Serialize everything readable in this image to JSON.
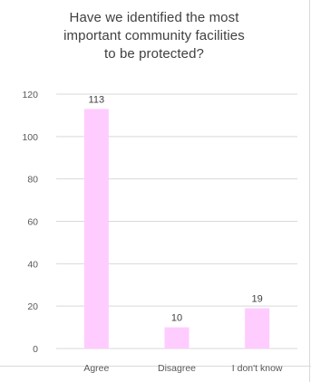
{
  "chart_data": {
    "type": "bar",
    "title_lines": [
      "Have we identified the most",
      "important community facilities",
      "to be protected?"
    ],
    "categories": [
      "Agree",
      "Disagree",
      "I don't know"
    ],
    "values": [
      113,
      10,
      19
    ],
    "data_labels": [
      "113",
      "10",
      "19"
    ],
    "ylim": [
      0,
      120
    ],
    "yticks": [
      0,
      20,
      40,
      60,
      80,
      100,
      120
    ],
    "grid": true,
    "legend": "none",
    "bar_color": "#ffccff",
    "grid_color": "#d9d9d9",
    "text_color": "#595959"
  }
}
